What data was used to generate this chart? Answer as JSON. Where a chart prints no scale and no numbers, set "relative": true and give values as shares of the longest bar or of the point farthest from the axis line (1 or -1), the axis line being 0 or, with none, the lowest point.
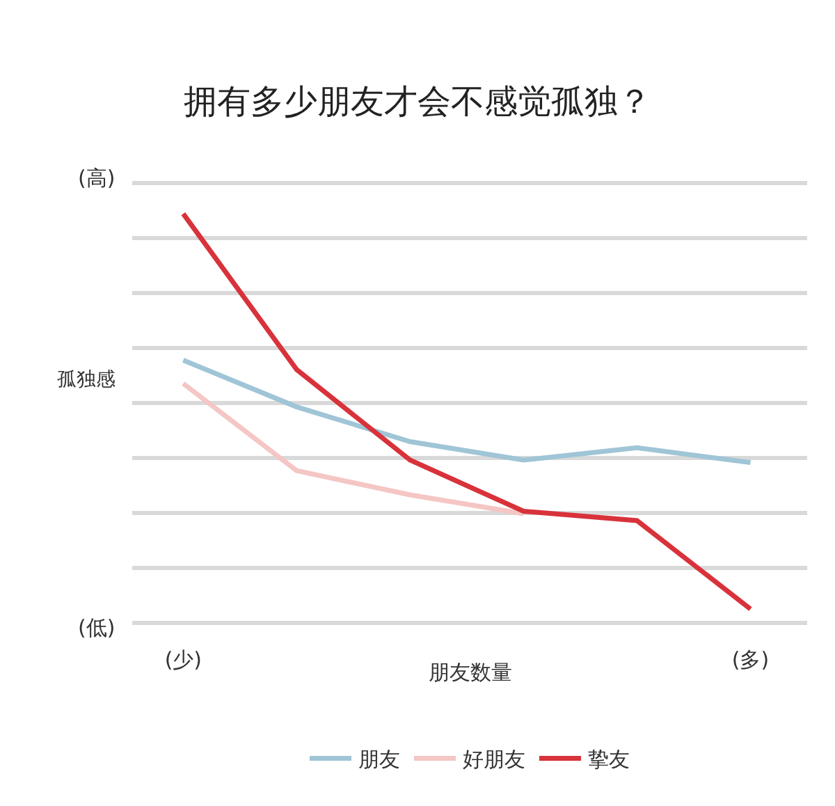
{
  "chart_data": {
    "type": "line",
    "title": "拥有多少朋友才会不感觉孤独？",
    "xlabel": "朋友数量",
    "ylabel": "孤独感",
    "relative": true,
    "grid": "y",
    "legend": "bottom",
    "marker": "none",
    "line_style": "solid",
    "categories": [
      "(少)",
      null,
      null,
      null,
      null,
      "(多)"
    ],
    "series": [
      {
        "name": "朋友",
        "color": "#9fc5d6",
        "values": [
          0.642,
          0.528,
          0.443,
          0.398,
          0.428,
          0.392
        ]
      },
      {
        "name": "好朋友",
        "color": "#f4c6c4",
        "values": [
          0.585,
          0.372,
          0.313,
          0.267,
          null,
          null
        ]
      },
      {
        "name": "挚友",
        "color": "#d8323b",
        "values": [
          1,
          0.619,
          0.398,
          0.273,
          0.25,
          0.034
        ]
      }
    ],
    "annotations": [
      "(高)",
      "(低)"
    ]
  }
}
